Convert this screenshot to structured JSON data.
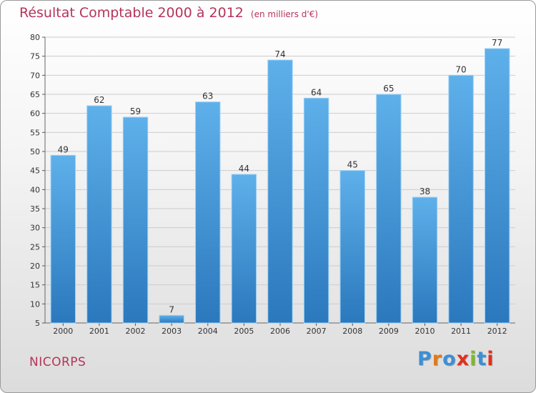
{
  "title": "Résultat Comptable 2000 à 2012",
  "subtitle": "(en milliers d'€)",
  "city": "NICORPS",
  "brand": {
    "letters": [
      "P",
      "r",
      "o",
      "x",
      "i",
      "t",
      "i"
    ],
    "colors": [
      "#3b8fd6",
      "#e07b1a",
      "#3b8fd6",
      "#e0301e",
      "#7cba2b",
      "#3b8fd6",
      "#e0301e"
    ]
  },
  "colors": {
    "title": "#b5345a",
    "bar_light": "#5eb0ea",
    "bar_dark": "#2b78bd",
    "axis_text": "#333333",
    "grid": "#cccccc"
  },
  "chart_data": {
    "type": "bar",
    "title": "Résultat Comptable 2000 à 2012",
    "categories": [
      "2000",
      "2001",
      "2002",
      "2003",
      "2004",
      "2005",
      "2006",
      "2007",
      "2008",
      "2009",
      "2010",
      "2011",
      "2012"
    ],
    "values": [
      49,
      62,
      59,
      7,
      63,
      44,
      74,
      64,
      45,
      65,
      38,
      70,
      77
    ],
    "ylim": [
      5,
      80
    ],
    "yticks": [
      5,
      10,
      15,
      20,
      25,
      30,
      35,
      40,
      45,
      50,
      55,
      60,
      65,
      70,
      75,
      80
    ],
    "grid": true,
    "data_labels": true
  }
}
